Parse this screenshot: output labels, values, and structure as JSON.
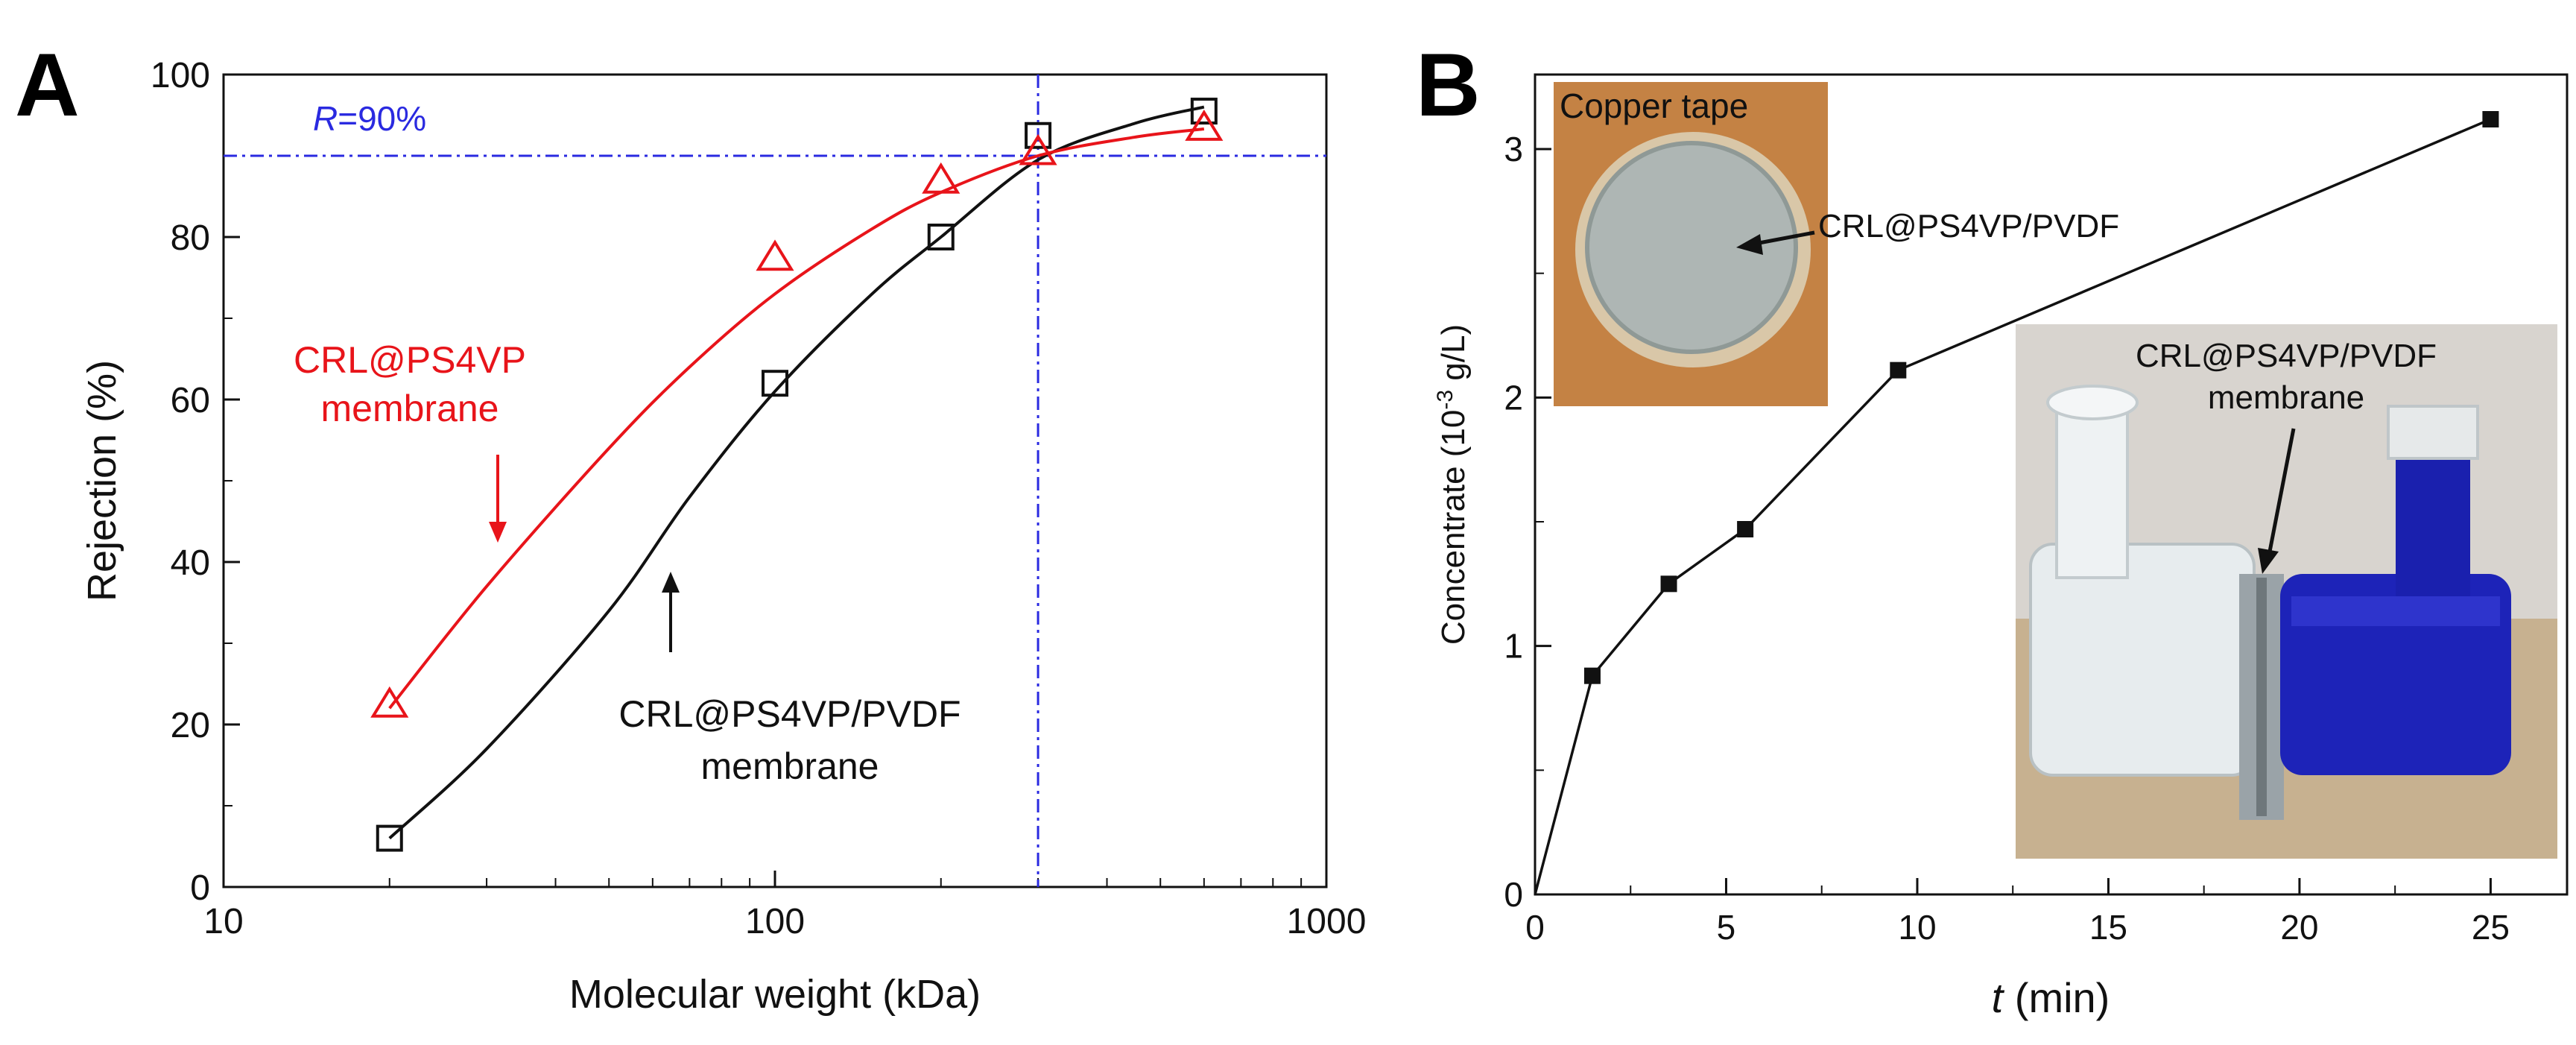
{
  "chart_data": [
    {
      "panel": "A",
      "type": "scatter",
      "xscale": "log",
      "xlim": [
        10,
        1000
      ],
      "ylim": [
        0,
        100
      ],
      "xticks": [
        10,
        100,
        1000
      ],
      "yticks": [
        0,
        20,
        40,
        60,
        80,
        100
      ],
      "xtick_labels": [
        "10",
        "100",
        "1000"
      ],
      "ytick_labels": [
        "0",
        "20",
        "40",
        "60",
        "80",
        "100"
      ],
      "xlabel": "Molecular weight (kDa)",
      "ylabel": "Rejection (%)",
      "reference_line": {
        "y": 90,
        "x": 300,
        "label_italic": "R",
        "label_rest": "=90%",
        "color": "#2a2ae0"
      },
      "series": [
        {
          "name": "CRL@PS4VP/PVDF membrane",
          "label_lines": [
            "CRL@PS4VP/PVDF",
            "membrane"
          ],
          "marker": "square",
          "color": "#111111",
          "points": [
            [
              20,
              6
            ],
            [
              100,
              62
            ],
            [
              200,
              80
            ],
            [
              300,
              92.5
            ],
            [
              600,
              95.5
            ]
          ],
          "curve": [
            [
              20,
              6
            ],
            [
              30,
              17
            ],
            [
              50,
              34
            ],
            [
              70,
              48
            ],
            [
              100,
              61
            ],
            [
              150,
              73
            ],
            [
              200,
              80
            ],
            [
              300,
              89.5
            ],
            [
              450,
              94
            ],
            [
              600,
              96
            ]
          ]
        },
        {
          "name": "CRL@PS4VP membrane",
          "label_lines": [
            "CRL@PS4VP",
            "membrane"
          ],
          "marker": "triangle",
          "color": "#e8141a",
          "points": [
            [
              20,
              22.5
            ],
            [
              100,
              77.5
            ],
            [
              200,
              87
            ],
            [
              300,
              90.5
            ],
            [
              600,
              93.5
            ]
          ],
          "curve": [
            [
              20,
              22
            ],
            [
              30,
              37
            ],
            [
              50,
              54
            ],
            [
              70,
              64
            ],
            [
              100,
              73
            ],
            [
              150,
              81
            ],
            [
              200,
              85.5
            ],
            [
              300,
              90
            ],
            [
              450,
              92.3
            ],
            [
              600,
              93.3
            ]
          ]
        }
      ]
    },
    {
      "panel": "B",
      "type": "line",
      "xlim": [
        0,
        27
      ],
      "ylim": [
        0,
        3.3
      ],
      "xticks": [
        0,
        5,
        10,
        15,
        20,
        25
      ],
      "yticks": [
        0,
        1,
        2,
        3
      ],
      "xtick_labels": [
        "0",
        "5",
        "10",
        "15",
        "20",
        "25"
      ],
      "ytick_labels": [
        "0",
        "1",
        "2",
        "3"
      ],
      "xlabel_italic": "t",
      "xlabel_rest": " (min)",
      "ylabel_main": "Concentrate (10",
      "ylabel_sup": "-3",
      "ylabel_tail": " g/L)",
      "series": [
        {
          "name": "concentrate",
          "color": "#111111",
          "x": [
            0,
            1.5,
            3.5,
            5.5,
            9.5,
            25
          ],
          "y": [
            0,
            0.88,
            1.25,
            1.47,
            2.11,
            3.12
          ]
        }
      ],
      "inset_top_label": "Copper tape",
      "inset_top_arrow_label": "CRL@PS4VP/PVDF",
      "inset_bottom_label_lines": [
        "CRL@PS4VP/PVDF",
        "membrane"
      ]
    }
  ],
  "figure": {
    "panel_a_label": "A",
    "panel_b_label": "B",
    "colors": {
      "black": "#111111",
      "red": "#e8141a",
      "blue": "#2a2ae0"
    }
  }
}
